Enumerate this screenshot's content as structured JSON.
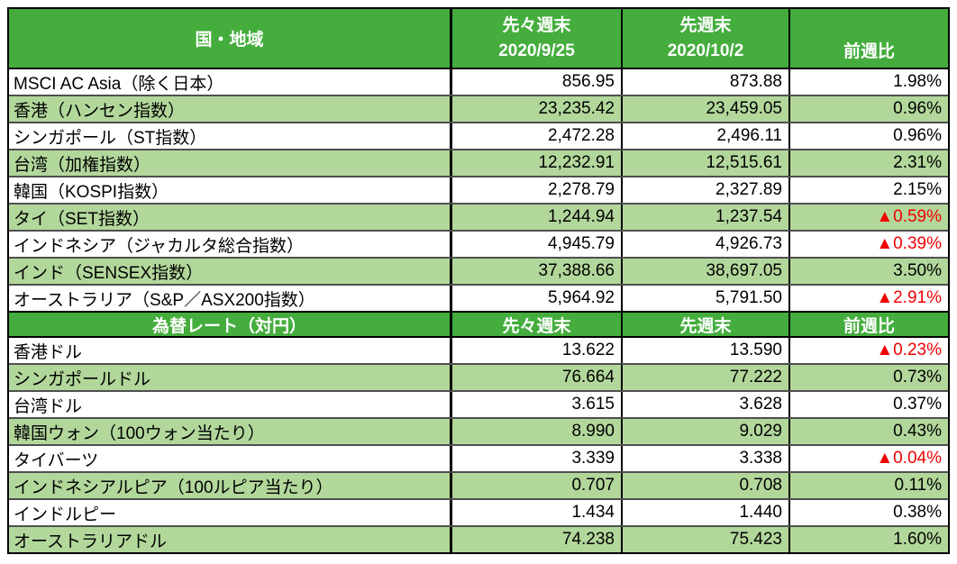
{
  "colors": {
    "header_green": "#44ad3d",
    "row_light_green": "#b2d79b",
    "negative_red": "#f10000",
    "border_black": "#000000",
    "row_separator": "#4f4f4f"
  },
  "chart_data": [
    {
      "type": "table",
      "title": "国・地域",
      "column_headers": [
        [
          "先々週末",
          "2020/9/25"
        ],
        [
          "先週末",
          "2020/10/2"
        ],
        [
          "前週比"
        ]
      ],
      "rows": [
        {
          "label": "MSCI AC Asia（除く日本）",
          "week_before_last": "856.95",
          "last_week": "873.88",
          "change": "1.98%",
          "negative": false
        },
        {
          "label": "香港（ハンセン指数）",
          "week_before_last": "23,235.42",
          "last_week": "23,459.05",
          "change": "0.96%",
          "negative": false
        },
        {
          "label": "シンガポール（ST指数）",
          "week_before_last": "2,472.28",
          "last_week": "2,496.11",
          "change": "0.96%",
          "negative": false
        },
        {
          "label": "台湾（加権指数）",
          "week_before_last": "12,232.91",
          "last_week": "12,515.61",
          "change": "2.31%",
          "negative": false
        },
        {
          "label": "韓国（KOSPI指数）",
          "week_before_last": "2,278.79",
          "last_week": "2,327.89",
          "change": "2.15%",
          "negative": false
        },
        {
          "label": "タイ（SET指数）",
          "week_before_last": "1,244.94",
          "last_week": "1,237.54",
          "change": "▲0.59%",
          "negative": true
        },
        {
          "label": "インドネシア（ジャカルタ総合指数）",
          "week_before_last": "4,945.79",
          "last_week": "4,926.73",
          "change": "▲0.39%",
          "negative": true
        },
        {
          "label": "インド（SENSEX指数）",
          "week_before_last": "37,388.66",
          "last_week": "38,697.05",
          "change": "3.50%",
          "negative": false
        },
        {
          "label": "オーストラリア（S&P／ASX200指数）",
          "week_before_last": "5,964.92",
          "last_week": "5,791.50",
          "change": "▲2.91%",
          "negative": true
        }
      ]
    },
    {
      "type": "table",
      "title": "為替レート（対円）",
      "column_headers": [
        [
          "先々週末"
        ],
        [
          "先週末"
        ],
        [
          "前週比"
        ]
      ],
      "rows": [
        {
          "label": "香港ドル",
          "week_before_last": "13.622",
          "last_week": "13.590",
          "change": "▲0.23%",
          "negative": true
        },
        {
          "label": "シンガポールドル",
          "week_before_last": "76.664",
          "last_week": "77.222",
          "change": "0.73%",
          "negative": false
        },
        {
          "label": "台湾ドル",
          "week_before_last": "3.615",
          "last_week": "3.628",
          "change": "0.37%",
          "negative": false
        },
        {
          "label": "韓国ウォン（100ウォン当たり）",
          "week_before_last": "8.990",
          "last_week": "9.029",
          "change": "0.43%",
          "negative": false
        },
        {
          "label": "タイバーツ",
          "week_before_last": "3.339",
          "last_week": "3.338",
          "change": "▲0.04%",
          "negative": true
        },
        {
          "label": "インドネシアルピア（100ルピア当たり）",
          "week_before_last": "0.707",
          "last_week": "0.708",
          "change": "0.11%",
          "negative": false
        },
        {
          "label": "インドルピー",
          "week_before_last": "1.434",
          "last_week": "1.440",
          "change": "0.38%",
          "negative": false
        },
        {
          "label": "オーストラリアドル",
          "week_before_last": "74.238",
          "last_week": "75.423",
          "change": "1.60%",
          "negative": false
        }
      ]
    }
  ]
}
